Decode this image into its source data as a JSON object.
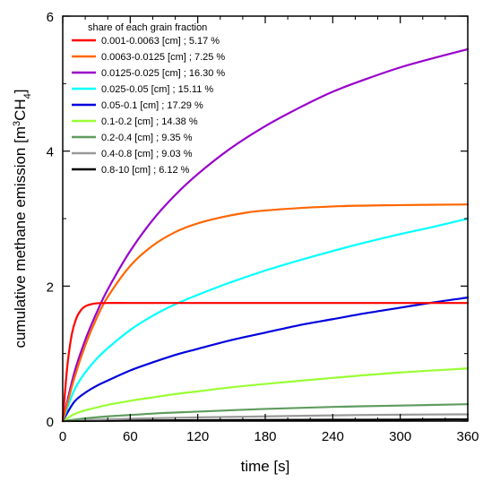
{
  "chart_data": {
    "type": "line",
    "xlabel": "time [s]",
    "ylabel_parts": [
      "cumulative methane emission [m",
      "3",
      "CH",
      "4",
      "]"
    ],
    "xlim": [
      0,
      360
    ],
    "ylim": [
      0,
      6
    ],
    "xticks": [
      0,
      60,
      120,
      180,
      240,
      300,
      360
    ],
    "yticks": [
      0,
      2,
      4,
      6
    ],
    "grid": false,
    "legend_title": "share of each grain fraction",
    "legend_position": "top-left",
    "series": [
      {
        "name": "0.001-0.0063 [cm] ; 5.17 %",
        "color": "#ff0000",
        "x": [
          0,
          4,
          8,
          12,
          16,
          20,
          25,
          30,
          40,
          60,
          120,
          240,
          360
        ],
        "y": [
          0,
          0.8,
          1.28,
          1.52,
          1.64,
          1.7,
          1.73,
          1.745,
          1.75,
          1.75,
          1.75,
          1.75,
          1.75
        ]
      },
      {
        "name": "0.0063-0.0125 [cm] ; 7.25 %",
        "color": "#ff6600",
        "x": [
          0,
          10,
          20,
          30,
          40,
          60,
          80,
          100,
          120,
          150,
          180,
          240,
          300,
          360
        ],
        "y": [
          0,
          0.62,
          1.12,
          1.52,
          1.84,
          2.3,
          2.6,
          2.8,
          2.93,
          3.05,
          3.12,
          3.18,
          3.2,
          3.21
        ]
      },
      {
        "name": "0.0125-0.025 [cm] ; 16.30 %",
        "color": "#9900cc",
        "x": [
          0,
          10,
          20,
          30,
          40,
          60,
          80,
          100,
          120,
          150,
          180,
          210,
          240,
          270,
          300,
          330,
          360
        ],
        "y": [
          0,
          0.7,
          1.2,
          1.6,
          1.95,
          2.52,
          2.98,
          3.35,
          3.66,
          4.05,
          4.37,
          4.64,
          4.88,
          5.07,
          5.24,
          5.38,
          5.51
        ]
      },
      {
        "name": "0.025-0.05 [cm] ; 15.11 %",
        "color": "#00ffff",
        "x": [
          0,
          10,
          20,
          30,
          40,
          60,
          80,
          100,
          120,
          150,
          180,
          210,
          240,
          270,
          300,
          330,
          360
        ],
        "y": [
          0,
          0.45,
          0.72,
          0.92,
          1.08,
          1.35,
          1.56,
          1.73,
          1.87,
          2.06,
          2.23,
          2.38,
          2.52,
          2.65,
          2.77,
          2.88,
          3.0
        ]
      },
      {
        "name": "0.05-0.1 [cm] ; 17.29 %",
        "color": "#0000dd",
        "x": [
          0,
          10,
          20,
          30,
          40,
          60,
          80,
          100,
          120,
          150,
          180,
          210,
          240,
          270,
          300,
          330,
          360
        ],
        "y": [
          0,
          0.28,
          0.42,
          0.52,
          0.6,
          0.75,
          0.87,
          0.98,
          1.07,
          1.2,
          1.31,
          1.42,
          1.51,
          1.6,
          1.68,
          1.76,
          1.83
        ]
      },
      {
        "name": "0.1-0.2 [cm] ; 14.38 %",
        "color": "#99ff33",
        "x": [
          0,
          10,
          20,
          30,
          40,
          60,
          80,
          100,
          120,
          150,
          180,
          240,
          300,
          360
        ],
        "y": [
          0,
          0.1,
          0.16,
          0.2,
          0.24,
          0.3,
          0.35,
          0.4,
          0.44,
          0.5,
          0.55,
          0.64,
          0.72,
          0.78
        ]
      },
      {
        "name": "0.2-0.4 [cm] ; 9.35 %",
        "color": "#5f9c5f",
        "x": [
          0,
          20,
          40,
          60,
          90,
          120,
          180,
          240,
          300,
          360
        ],
        "y": [
          0,
          0.04,
          0.07,
          0.09,
          0.12,
          0.14,
          0.18,
          0.21,
          0.23,
          0.25
        ]
      },
      {
        "name": "0.4-0.8 [cm] ; 9.03 %",
        "color": "#999999",
        "x": [
          0,
          30,
          60,
          120,
          180,
          240,
          300,
          360
        ],
        "y": [
          0,
          0.02,
          0.035,
          0.055,
          0.07,
          0.085,
          0.095,
          0.1
        ]
      },
      {
        "name": "0.8-10 [cm] ; 6.12 %",
        "color": "#000000",
        "x": [
          0,
          60,
          120,
          180,
          240,
          300,
          360
        ],
        "y": [
          0,
          0.008,
          0.013,
          0.017,
          0.02,
          0.022,
          0.025
        ]
      }
    ]
  }
}
